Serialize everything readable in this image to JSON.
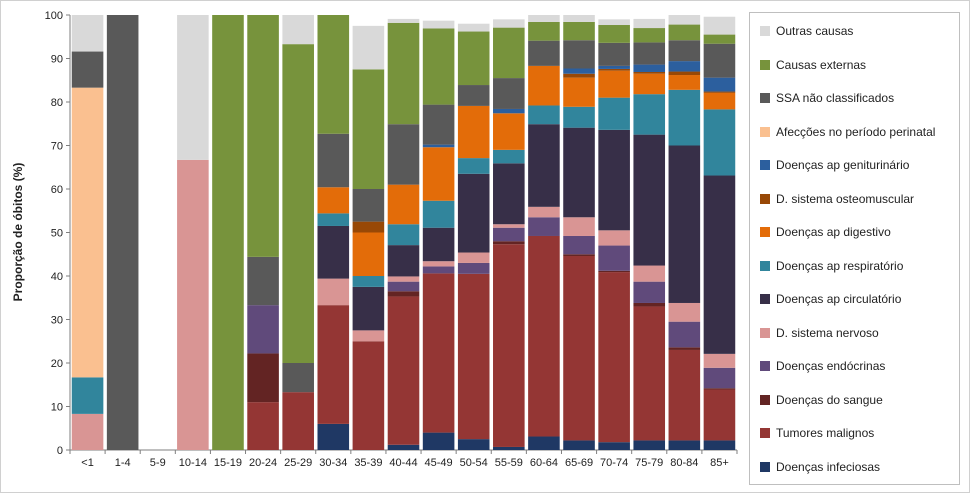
{
  "chart_data": {
    "type": "bar",
    "stacked": true,
    "title": "",
    "xlabel": "",
    "ylabel": "Proporção de óbitos (%)",
    "ylim": [
      0,
      100
    ],
    "yticks": [
      0,
      10,
      20,
      30,
      40,
      50,
      60,
      70,
      80,
      90,
      100
    ],
    "grid": false,
    "legend_position": "right",
    "categories": [
      "<1",
      "1-4",
      "5-9",
      "10-14",
      "15-19",
      "20-24",
      "25-29",
      "30-34",
      "35-39",
      "40-44",
      "45-49",
      "50-54",
      "55-59",
      "60-64",
      "65-69",
      "70-74",
      "75-79",
      "80-84",
      "85+"
    ],
    "series": [
      {
        "name": "Doenças infeciosas",
        "color": "#1f3864",
        "values": [
          0,
          0,
          0,
          0,
          0,
          0,
          0,
          6,
          0,
          1.2,
          4,
          2.5,
          0.7,
          3.1,
          2.2,
          1.8,
          2.2,
          2.2,
          2.2
        ]
      },
      {
        "name": "Tumores malignos",
        "color": "#943634",
        "values": [
          0,
          0,
          0,
          0,
          0,
          11,
          13.3,
          27.3,
          25,
          34.1,
          36.6,
          38,
          46.6,
          46.1,
          42.4,
          39.1,
          30.8,
          20.8,
          11.7
        ]
      },
      {
        "name": "Doenças do sangue",
        "color": "#632423",
        "values": [
          0,
          0,
          0,
          0,
          0,
          11.2,
          0,
          0,
          0,
          1.2,
          0,
          0,
          0.7,
          0,
          0.4,
          0.3,
          0.8,
          0.6,
          0.3
        ]
      },
      {
        "name": "Doenças endócrinas",
        "color": "#604a7b",
        "values": [
          0,
          0,
          0,
          0,
          0,
          11.1,
          0,
          0,
          0,
          2.2,
          1.6,
          2.5,
          3.1,
          4.3,
          4.2,
          5.8,
          4.9,
          5.9,
          4.7
        ]
      },
      {
        "name": "D. sistema nervoso",
        "color": "#d99594",
        "values": [
          8.3,
          0,
          0,
          66.7,
          0,
          0,
          0,
          6.1,
          2.5,
          1.2,
          1.2,
          2.4,
          0.8,
          2.4,
          4.3,
          3.5,
          3.7,
          4.3,
          3.2
        ]
      },
      {
        "name": "Doenças ap circulatório",
        "color": "#372f48",
        "values": [
          0,
          0,
          0,
          0,
          0,
          0,
          0,
          12.1,
          10,
          7.2,
          7.7,
          18.1,
          14,
          19,
          20.6,
          23.1,
          30.1,
          36.2,
          41
        ]
      },
      {
        "name": "Doenças ap respiratório",
        "color": "#31859c",
        "values": [
          8.4,
          0,
          0,
          0,
          0,
          0,
          0,
          2.9,
          2.5,
          4.8,
          6.2,
          3.6,
          3.1,
          4.3,
          4.8,
          7.4,
          9.3,
          12.8,
          15.2
        ]
      },
      {
        "name": "Doenças ap digestivo",
        "color": "#e36c09",
        "values": [
          0,
          0,
          0,
          0,
          0,
          0,
          0,
          6,
          10,
          9.1,
          12.3,
          12,
          8.4,
          9.1,
          6.7,
          6.2,
          4.7,
          3.4,
          3.8
        ]
      },
      {
        "name": "D. sistema osteomuscular",
        "color": "#984806",
        "values": [
          0,
          0,
          0,
          0,
          0,
          0,
          0,
          0,
          2.5,
          0,
          0,
          0,
          0,
          0,
          0.9,
          0.4,
          0.4,
          0.8,
          0.3
        ]
      },
      {
        "name": "Doenças ap geniturinário",
        "color": "#2c5f9e",
        "values": [
          0,
          0,
          0,
          0,
          0,
          0,
          0,
          0,
          0,
          0,
          0.6,
          0,
          1,
          0,
          1.2,
          0.7,
          1.7,
          2.4,
          3.2
        ]
      },
      {
        "name": "Afecções no período perinatal",
        "color": "#fac090",
        "values": [
          66.6,
          0,
          0,
          0,
          0,
          0,
          0,
          0,
          0,
          0,
          0,
          0,
          0,
          0,
          0,
          0,
          0,
          0,
          0
        ]
      },
      {
        "name": "SSA não classificados",
        "color": "#595959",
        "values": [
          8.3,
          100,
          0,
          0,
          0,
          11.1,
          6.7,
          12.3,
          7.5,
          13.9,
          9.2,
          4.8,
          7.1,
          5.8,
          6.5,
          5.3,
          5.1,
          4.8,
          7.8
        ]
      },
      {
        "name": "Causas externas",
        "color": "#77933c",
        "values": [
          0,
          0,
          0,
          0,
          100,
          55.6,
          73.3,
          27.3,
          27.5,
          23.3,
          17.5,
          12.3,
          11.6,
          4.3,
          4.2,
          4.1,
          3.3,
          3.6,
          2.1
        ]
      },
      {
        "name": "Outras causas",
        "color": "#d9d9d9",
        "values": [
          8.4,
          0,
          0,
          33.3,
          0,
          0,
          6.7,
          0,
          10,
          0.9,
          1.8,
          1.8,
          1.9,
          1.6,
          1.6,
          1.3,
          2.1,
          2.2,
          4.1
        ]
      }
    ]
  }
}
